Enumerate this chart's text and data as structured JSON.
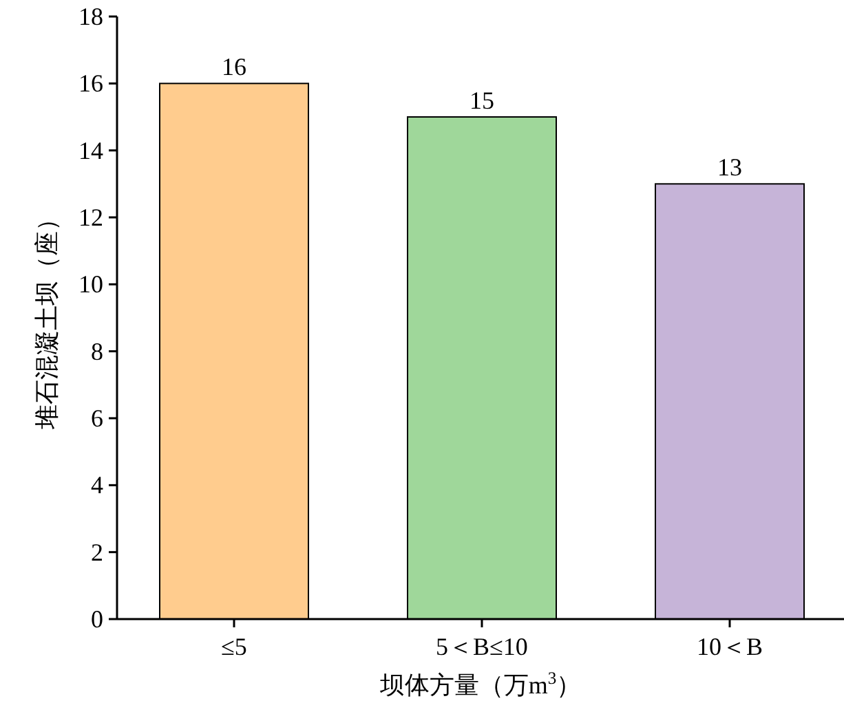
{
  "chart_data": {
    "type": "bar",
    "categories": [
      "≤5",
      "5＜B≤10",
      "10＜B"
    ],
    "values": [
      16,
      15,
      13
    ],
    "colors": [
      "#ffcc8e",
      "#9fd79a",
      "#c6b4d8"
    ],
    "xlabel": "坝体方量（万m$^{3}$）",
    "ylabel": "堆石混凝土坝（座）",
    "ylim": [
      0,
      18
    ],
    "yticks": [
      0,
      2,
      4,
      6,
      8,
      10,
      12,
      14,
      16,
      18
    ],
    "data_labels": true,
    "grid": false
  }
}
